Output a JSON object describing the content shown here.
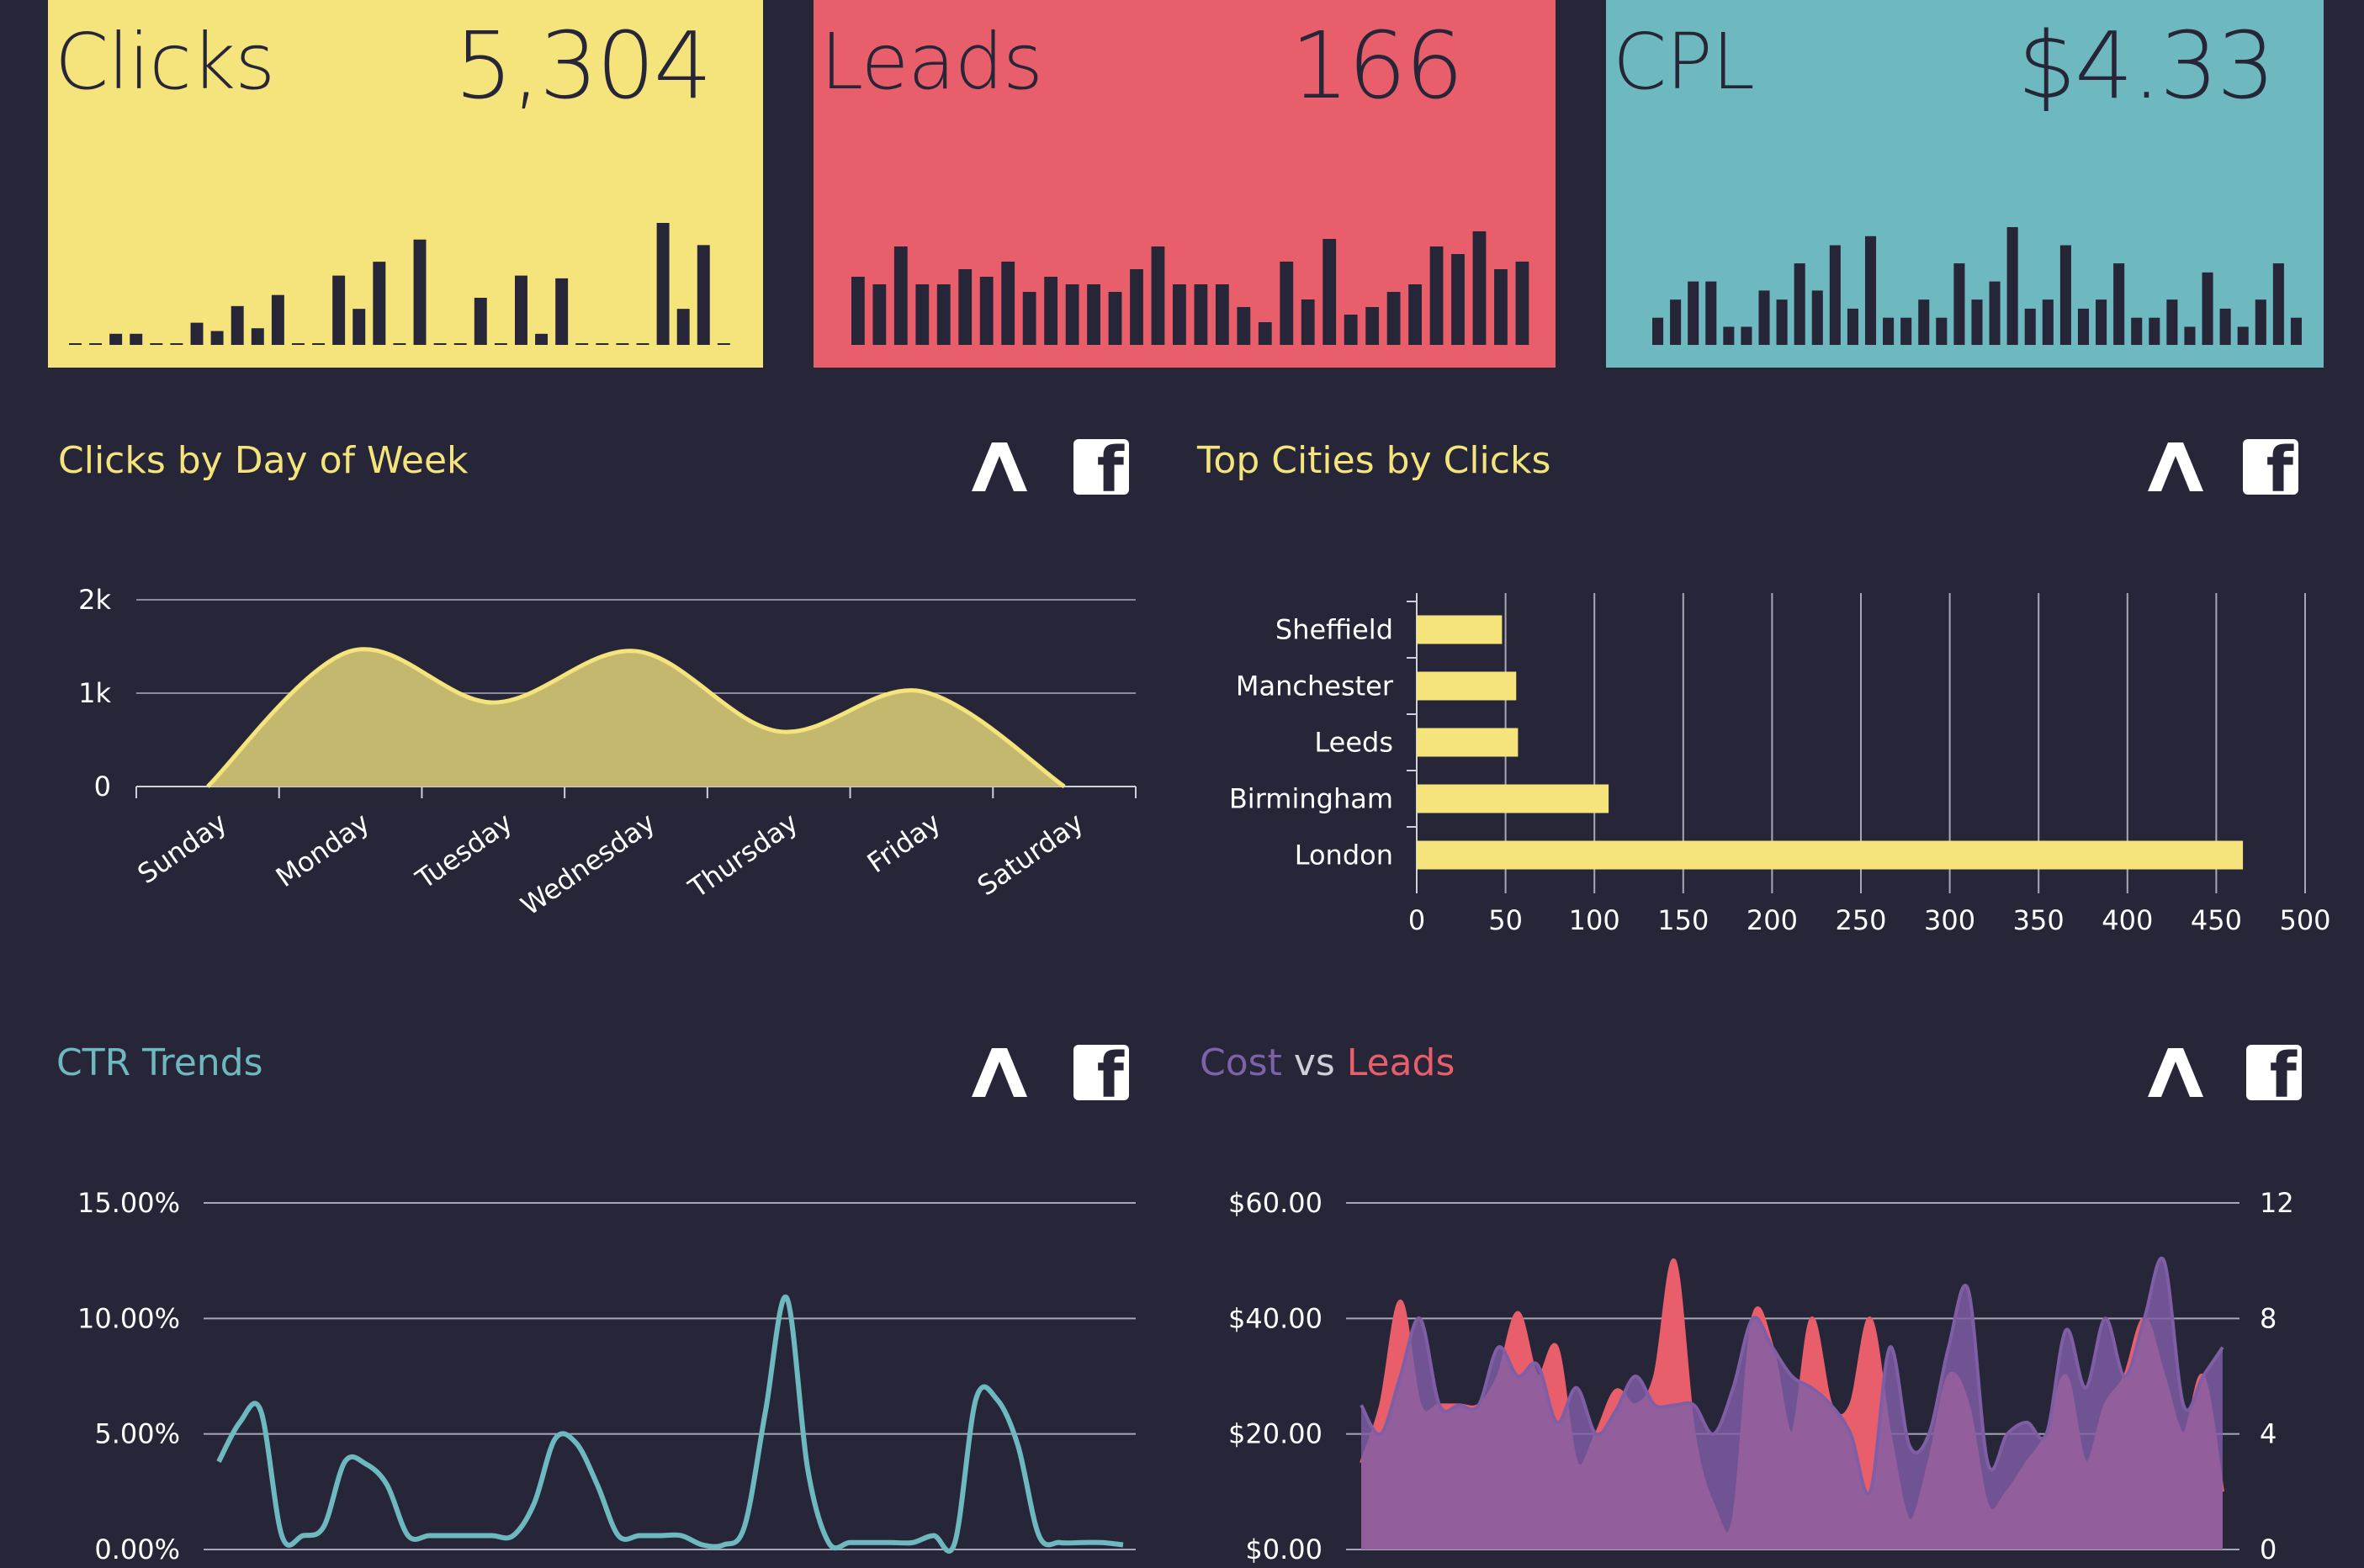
{
  "colors": {
    "background": "#272638",
    "yellow": "#f5e47c",
    "red": "#e85e6b",
    "teal": "#6db9bf",
    "purple": "#6e5596",
    "dark": "#272638"
  },
  "icons": [
    "a-logo-icon",
    "facebook-icon"
  ],
  "kpis": [
    {
      "label": "Clicks",
      "value": "5,304"
    },
    {
      "label": "Leads",
      "value": "166"
    },
    {
      "label": "CPL",
      "value": "$4.33"
    }
  ],
  "panels": {
    "day_of_week": {
      "title": "Clicks by Day of Week"
    },
    "top_cities": {
      "title": "Top Cities by Clicks"
    },
    "ctr": {
      "title": "CTR Trends"
    },
    "cost_leads": {
      "title_a": "Cost",
      "title_vs": " vs ",
      "title_b": "Leads"
    }
  },
  "chart_data": [
    {
      "id": "clicks_sparkline",
      "type": "bar",
      "values": [
        0.3,
        0,
        2,
        2,
        0.3,
        0.3,
        4,
        2.5,
        7,
        3,
        9,
        0.3,
        0.3,
        12.5,
        6.5,
        15,
        0,
        19,
        0,
        0.3,
        8.5,
        0.3,
        12.5,
        2,
        12,
        0.3,
        0,
        0,
        0.3,
        22,
        6.5,
        18,
        0.3
      ]
    },
    {
      "id": "leads_sparkline",
      "type": "bar",
      "values": [
        9,
        8,
        13,
        8,
        8,
        10,
        9,
        11,
        7,
        9,
        8,
        8,
        7,
        10,
        13,
        8,
        8,
        8,
        5,
        3,
        11,
        6,
        14,
        4,
        5,
        7,
        8,
        13,
        12,
        15,
        10,
        11
      ]
    },
    {
      "id": "cpl_sparkline",
      "type": "bar",
      "values": [
        3,
        5,
        7,
        7,
        2,
        2,
        6,
        5,
        9,
        6,
        11,
        4,
        12,
        3,
        3,
        5,
        3,
        9,
        5,
        7,
        13,
        4,
        5,
        11,
        4,
        5,
        9,
        3,
        3,
        5,
        2,
        8,
        4,
        2,
        5,
        9,
        3
      ]
    },
    {
      "id": "clicks_by_day",
      "type": "area",
      "categories": [
        "Sunday",
        "Monday",
        "Tuesday",
        "Wednesday",
        "Thursday",
        "Friday",
        "Saturday"
      ],
      "values": [
        0,
        1450,
        900,
        1450,
        590,
        1020,
        0
      ],
      "y_ticks": [
        "0",
        "1k",
        "2k"
      ],
      "ylim": [
        0,
        2000
      ],
      "grid": true
    },
    {
      "id": "top_cities",
      "type": "bar",
      "orientation": "horizontal",
      "categories": [
        "Sheffield",
        "Manchester",
        "Leeds",
        "Birmingham",
        "London"
      ],
      "values": [
        48,
        56,
        57,
        108,
        465
      ],
      "x_ticks": [
        "0",
        "50",
        "100",
        "150",
        "200",
        "250",
        "300",
        "350",
        "400",
        "450",
        "500"
      ],
      "xlim": [
        0,
        500
      ],
      "grid": true
    },
    {
      "id": "ctr_trends",
      "type": "line",
      "y_ticks": [
        "0.00%",
        "5.00%",
        "10.00%",
        "15.00%"
      ],
      "ylim": [
        0,
        15
      ],
      "values": [
        3.8,
        5.5,
        6,
        0.6,
        0.6,
        1,
        3.8,
        3.7,
        2.8,
        0.6,
        0.6,
        0.6,
        0.6,
        0.6,
        0.6,
        2,
        4.8,
        4.6,
        2.8,
        0.6,
        0.6,
        0.6,
        0.6,
        0.2,
        0.2,
        1,
        6,
        10.9,
        3.5,
        0.3,
        0.3,
        0.3,
        0.3,
        0.3,
        0.6,
        0.3,
        6.5,
        6.5,
        4.5,
        0.6,
        0.3,
        0.3,
        0.3,
        0.2
      ]
    },
    {
      "id": "cost_vs_leads",
      "type": "area",
      "y_ticks": [
        "$0.00",
        "$20.00",
        "$40.00",
        "$60.00"
      ],
      "y2_ticks": [
        "0",
        "4",
        "8",
        "12"
      ],
      "ylim": [
        0,
        60
      ],
      "y2lim": [
        0,
        12
      ],
      "series": [
        {
          "name": "Leads",
          "axis": "right",
          "values": [
            3,
            5,
            8.6,
            5,
            5,
            5,
            5,
            6,
            8.2,
            6,
            7,
            3,
            4,
            5.5,
            5,
            6,
            10,
            4,
            1.5,
            1,
            8,
            7,
            4,
            8,
            5,
            5,
            8,
            4,
            1,
            3,
            6,
            5,
            1.5,
            2,
            3,
            4,
            6,
            3,
            5,
            6,
            8,
            6,
            4,
            6,
            2
          ]
        },
        {
          "name": "Cost",
          "axis": "left",
          "values": [
            25,
            20,
            30,
            40,
            25,
            25,
            25,
            35,
            30,
            32,
            22,
            28,
            20,
            24,
            30,
            25,
            25,
            25,
            20,
            28,
            40,
            35,
            30,
            28,
            25,
            20,
            10,
            35,
            18,
            20,
            35,
            45,
            15,
            20,
            22,
            20,
            38,
            28,
            40,
            30,
            40,
            50,
            25,
            30,
            35
          ]
        }
      ]
    }
  ]
}
